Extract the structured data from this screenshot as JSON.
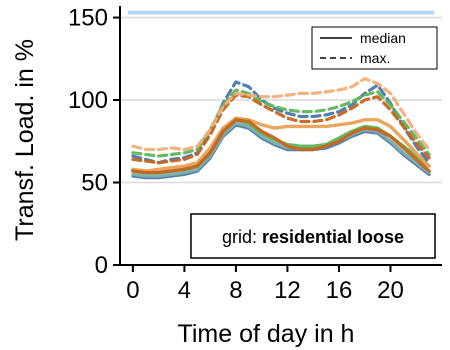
{
  "chart_data": {
    "type": "line",
    "xlabel": "Time of day in h",
    "ylabel": "Transf. Load. in %",
    "xlim": [
      -1,
      24
    ],
    "ylim": [
      0,
      157
    ],
    "xticks": [
      0,
      4,
      8,
      12,
      16,
      20
    ],
    "yticks": [
      0,
      50,
      100,
      150
    ],
    "grid": "horizontal",
    "limit_line": {
      "y": 153,
      "color": "#b7d7ee"
    },
    "legend": {
      "placement": "top-right",
      "entries": [
        {
          "label": "median",
          "style": "solid"
        },
        {
          "label": "max.",
          "style": "dashed"
        }
      ]
    },
    "annotation": {
      "prefix": "grid: ",
      "bold": "residential loose"
    },
    "x": [
      0,
      1,
      2,
      3,
      4,
      5,
      6,
      7,
      8,
      9,
      10,
      11,
      12,
      13,
      14,
      15,
      16,
      17,
      18,
      19,
      20,
      21,
      22,
      23
    ],
    "series": [
      {
        "style": "solid",
        "color": "#4a78ad",
        "values": [
          54,
          53,
          53,
          54,
          55,
          57,
          65,
          78,
          85,
          83,
          77,
          73,
          70,
          70,
          70,
          71,
          74,
          78,
          81,
          80,
          74,
          67,
          61,
          55
        ]
      },
      {
        "style": "solid",
        "color": "#7eb0ad",
        "values": [
          55,
          54,
          54,
          55,
          56,
          58,
          66,
          79,
          86,
          84,
          78,
          74,
          71,
          71,
          71,
          72,
          75,
          79,
          82,
          81,
          75,
          68,
          62,
          56
        ]
      },
      {
        "style": "solid",
        "color": "#5fb65a",
        "values": [
          57,
          56,
          56,
          57,
          58,
          60,
          68,
          81,
          88,
          86,
          80,
          76,
          73,
          72,
          72,
          73,
          77,
          81,
          84,
          83,
          78,
          72,
          66,
          60
        ]
      },
      {
        "style": "solid",
        "color": "#e8a155",
        "values": [
          58,
          57,
          58,
          59,
          60,
          62,
          71,
          83,
          89,
          88,
          85,
          83,
          84,
          84,
          84,
          84,
          85,
          86,
          88,
          88,
          84,
          76,
          68,
          60
        ]
      },
      {
        "style": "solid",
        "color": "#c66520",
        "values": [
          57,
          56,
          56,
          57,
          58,
          60,
          68,
          81,
          88,
          87,
          81,
          77,
          72,
          70,
          70,
          72,
          75,
          80,
          83,
          82,
          78,
          71,
          64,
          57
        ]
      },
      {
        "style": "dashed",
        "color": "#4a78ad",
        "values": [
          66,
          64,
          62,
          64,
          65,
          68,
          80,
          98,
          111,
          108,
          100,
          95,
          92,
          90,
          90,
          91,
          93,
          97,
          104,
          109,
          98,
          84,
          72,
          62
        ]
      },
      {
        "style": "dashed",
        "color": "#5fb65a",
        "values": [
          68,
          67,
          66,
          67,
          68,
          70,
          82,
          97,
          106,
          104,
          99,
          96,
          94,
          93,
          93,
          94,
          96,
          99,
          103,
          105,
          97,
          87,
          77,
          67
        ]
      },
      {
        "style": "dashed",
        "color": "#c66520",
        "values": [
          64,
          63,
          62,
          63,
          64,
          67,
          79,
          94,
          103,
          102,
          97,
          93,
          89,
          87,
          87,
          88,
          91,
          95,
          100,
          102,
          94,
          84,
          74,
          65
        ]
      },
      {
        "style": "dashed",
        "color": "#f2ae78",
        "values": [
          72,
          70,
          70,
          71,
          70,
          72,
          82,
          96,
          104,
          103,
          102,
          102,
          103,
          104,
          104,
          105,
          106,
          108,
          113,
          110,
          104,
          92,
          80,
          70
        ]
      }
    ]
  }
}
